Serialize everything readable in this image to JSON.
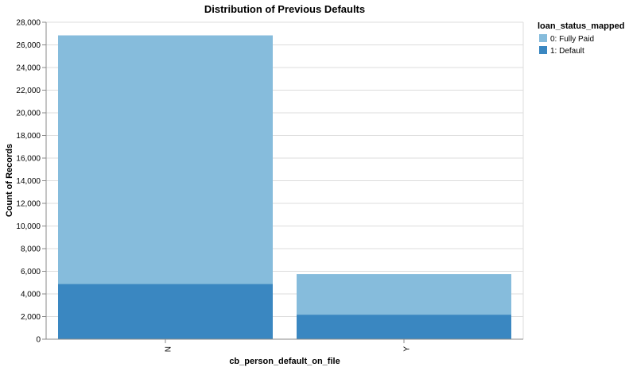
{
  "chart_data": {
    "type": "bar",
    "stacked": true,
    "title": "Distribution of Previous Defaults",
    "xlabel": "cb_person_default_on_file",
    "ylabel": "Count of Records",
    "categories": [
      "N",
      "Y"
    ],
    "series": [
      {
        "name": "0: Fully Paid",
        "values": [
          21950,
          3580
        ],
        "color": "#86bcdc"
      },
      {
        "name": "1: Default",
        "values": [
          4890,
          2170
        ],
        "color": "#3a87c1"
      }
    ],
    "ylim": [
      0,
      28000
    ],
    "yticks": [
      0,
      2000,
      4000,
      6000,
      8000,
      10000,
      12000,
      14000,
      16000,
      18000,
      20000,
      22000,
      24000,
      26000,
      28000
    ],
    "ytick_labels": [
      "0",
      "2,000",
      "4,000",
      "6,000",
      "8,000",
      "10,000",
      "12,000",
      "14,000",
      "16,000",
      "18,000",
      "20,000",
      "22,000",
      "24,000",
      "26,000",
      "28,000"
    ],
    "grid": true,
    "legend": {
      "title": "loan_status_mapped",
      "position": "top-right"
    }
  }
}
